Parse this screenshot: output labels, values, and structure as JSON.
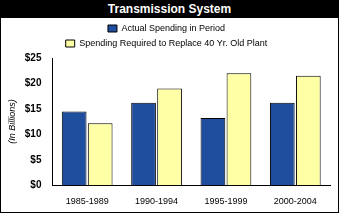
{
  "chart_data": {
    "type": "bar",
    "title": "Transmission System",
    "y_label": "(In Billions)",
    "categories": [
      "1985-1989",
      "1990-1994",
      "1995-1999",
      "2000-2004"
    ],
    "series": [
      {
        "name": "Actual Spending in Period",
        "color": "#1f4e9e",
        "values": [
          14.5,
          16.2,
          13.2,
          16.2
        ]
      },
      {
        "name": "Spending Required to Replace 40 Yr. Old Plant",
        "color": "#ffffa6",
        "values": [
          12.2,
          19.0,
          22.0,
          21.5
        ]
      }
    ],
    "ylim": [
      0,
      25
    ],
    "yticks": [
      {
        "value": 0,
        "label": "$0"
      },
      {
        "value": 5,
        "label": "$5"
      },
      {
        "value": 10,
        "label": "$10"
      },
      {
        "value": 15,
        "label": "$15"
      },
      {
        "value": 20,
        "label": "$20"
      },
      {
        "value": 25,
        "label": "$25"
      }
    ],
    "grid": false,
    "legend": "top"
  }
}
